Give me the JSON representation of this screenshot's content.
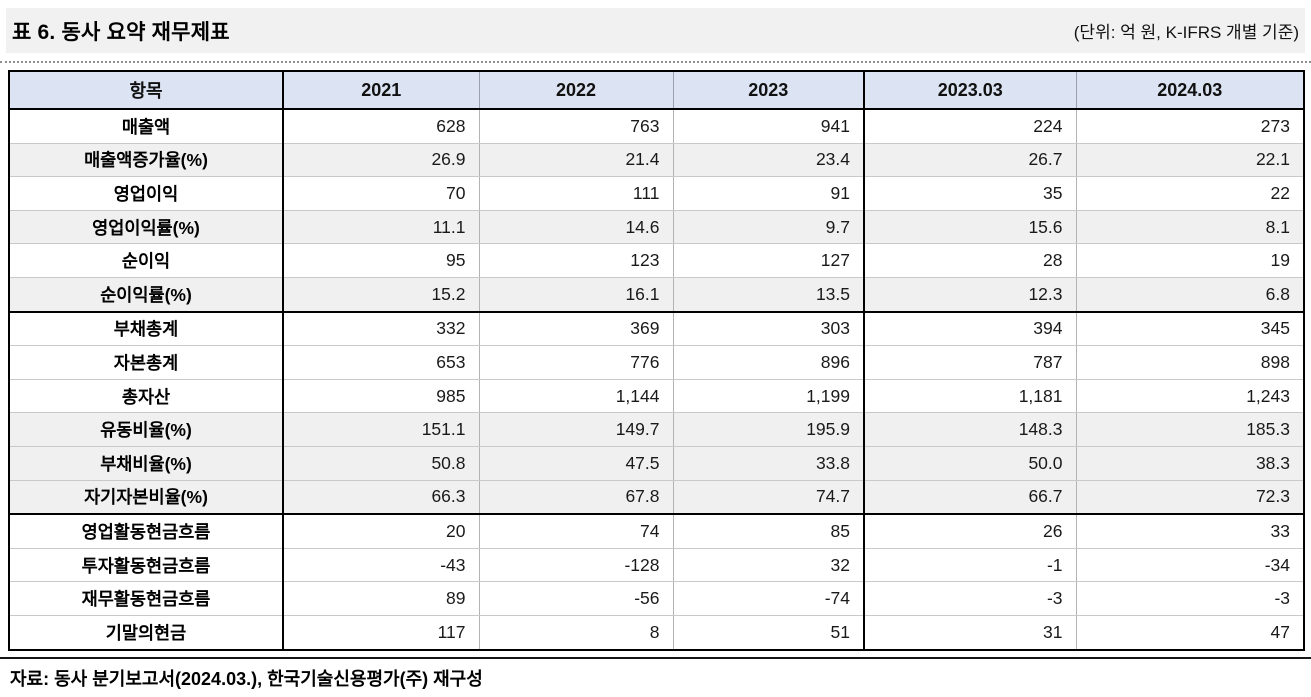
{
  "document": {
    "title": "표 6. 동사 요약 재무제표",
    "unit_note": "(단위: 억 원, K-IFRS 개별 기준)",
    "source_note": "자료: 동사 분기보고서(2024.03.), 한국기술신용평가(주) 재구성"
  },
  "table": {
    "columns": [
      "항목",
      "2021",
      "2022",
      "2023",
      "2023.03",
      "2024.03"
    ],
    "rows": [
      {
        "label": "매출액",
        "values": [
          "628",
          "763",
          "941",
          "224",
          "273"
        ],
        "shaded": false,
        "section_start": false
      },
      {
        "label": "매출액증가율(%)",
        "values": [
          "26.9",
          "21.4",
          "23.4",
          "26.7",
          "22.1"
        ],
        "shaded": true,
        "section_start": false
      },
      {
        "label": "영업이익",
        "values": [
          "70",
          "111",
          "91",
          "35",
          "22"
        ],
        "shaded": false,
        "section_start": false
      },
      {
        "label": "영업이익률(%)",
        "values": [
          "11.1",
          "14.6",
          "9.7",
          "15.6",
          "8.1"
        ],
        "shaded": true,
        "section_start": false
      },
      {
        "label": "순이익",
        "values": [
          "95",
          "123",
          "127",
          "28",
          "19"
        ],
        "shaded": false,
        "section_start": false
      },
      {
        "label": "순이익률(%)",
        "values": [
          "15.2",
          "16.1",
          "13.5",
          "12.3",
          "6.8"
        ],
        "shaded": true,
        "section_start": false
      },
      {
        "label": "부채총계",
        "values": [
          "332",
          "369",
          "303",
          "394",
          "345"
        ],
        "shaded": false,
        "section_start": true
      },
      {
        "label": "자본총계",
        "values": [
          "653",
          "776",
          "896",
          "787",
          "898"
        ],
        "shaded": false,
        "section_start": false
      },
      {
        "label": "총자산",
        "values": [
          "985",
          "1,144",
          "1,199",
          "1,181",
          "1,243"
        ],
        "shaded": false,
        "section_start": false
      },
      {
        "label": "유동비율(%)",
        "values": [
          "151.1",
          "149.7",
          "195.9",
          "148.3",
          "185.3"
        ],
        "shaded": true,
        "section_start": false
      },
      {
        "label": "부채비율(%)",
        "values": [
          "50.8",
          "47.5",
          "33.8",
          "50.0",
          "38.3"
        ],
        "shaded": true,
        "section_start": false
      },
      {
        "label": "자기자본비율(%)",
        "values": [
          "66.3",
          "67.8",
          "74.7",
          "66.7",
          "72.3"
        ],
        "shaded": true,
        "section_start": false
      },
      {
        "label": "영업활동현금흐름",
        "values": [
          "20",
          "74",
          "85",
          "26",
          "33"
        ],
        "shaded": false,
        "section_start": true
      },
      {
        "label": "투자활동현금흐름",
        "values": [
          "-43",
          "-128",
          "32",
          "-1",
          "-34"
        ],
        "shaded": false,
        "section_start": false
      },
      {
        "label": "재무활동현금흐름",
        "values": [
          "89",
          "-56",
          "-74",
          "-3",
          "-3"
        ],
        "shaded": false,
        "section_start": false
      },
      {
        "label": "기말의현금",
        "values": [
          "117",
          "8",
          "51",
          "31",
          "47"
        ],
        "shaded": false,
        "section_start": false
      }
    ]
  },
  "colors": {
    "header_bg": "#dce3f2",
    "shaded_row_bg": "#f0f0f0",
    "title_band_bg": "#f1f1f1"
  }
}
